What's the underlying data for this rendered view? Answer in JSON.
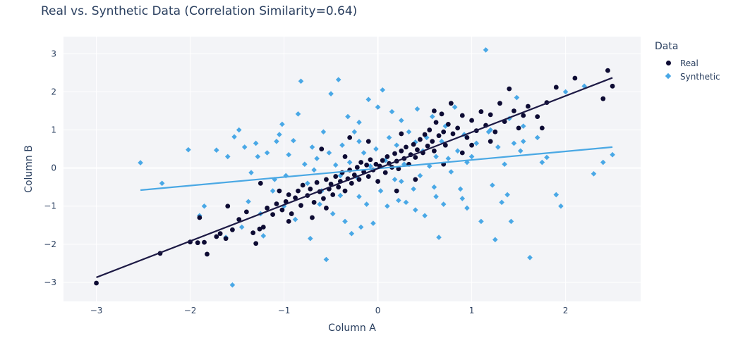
{
  "chart_data": {
    "type": "scatter",
    "title": "Real vs. Synthetic Data (Correlation Similarity=0.64)",
    "xlabel": "Column A",
    "ylabel": "Column B",
    "xlim": [
      -3.35,
      2.8
    ],
    "ylim": [
      -3.5,
      3.45
    ],
    "xticks": [
      -3,
      -2,
      -1,
      0,
      1,
      2
    ],
    "yticks": [
      -3,
      -2,
      -1,
      0,
      1,
      2,
      3
    ],
    "xtick_labels": [
      "−3",
      "−2",
      "−1",
      "0",
      "1",
      "2"
    ],
    "ytick_labels": [
      "−3",
      "−2",
      "−1",
      "0",
      "1",
      "2",
      "3"
    ],
    "grid": true,
    "plot_background": "#f3f4f7",
    "legend": {
      "title": "Data",
      "position": "top-right"
    },
    "series": [
      {
        "name": "Real",
        "marker": "circle",
        "color": "#0d0b33",
        "trendline": {
          "x": [
            -3.0,
            2.5
          ],
          "y": [
            -2.87,
            2.37
          ],
          "color": "#1d1a45"
        },
        "points": [
          [
            -3.0,
            -3.02
          ],
          [
            -2.32,
            -2.24
          ],
          [
            -1.92,
            -1.96
          ],
          [
            -1.82,
            -2.26
          ],
          [
            -2.0,
            -1.94
          ],
          [
            -1.85,
            -1.95
          ],
          [
            -1.72,
            -1.8
          ],
          [
            -1.68,
            -1.72
          ],
          [
            -1.62,
            -1.85
          ],
          [
            -1.55,
            -1.62
          ],
          [
            -1.48,
            -1.35
          ],
          [
            -1.4,
            -1.15
          ],
          [
            -1.33,
            -1.7
          ],
          [
            -1.3,
            -1.98
          ],
          [
            -1.26,
            -1.6
          ],
          [
            -1.22,
            -1.55
          ],
          [
            -1.18,
            -1.05
          ],
          [
            -1.12,
            -1.22
          ],
          [
            -1.08,
            -0.94
          ],
          [
            -1.02,
            -1.1
          ],
          [
            -0.98,
            -0.88
          ],
          [
            -0.95,
            -0.7
          ],
          [
            -0.92,
            -1.2
          ],
          [
            -0.88,
            -0.78
          ],
          [
            -0.85,
            -0.6
          ],
          [
            -0.82,
            -0.98
          ],
          [
            -0.8,
            -0.45
          ],
          [
            -0.75,
            -0.72
          ],
          [
            -0.72,
            -0.55
          ],
          [
            -0.68,
            -0.9
          ],
          [
            -0.65,
            -0.38
          ],
          [
            -0.62,
            -0.62
          ],
          [
            -0.58,
            -0.8
          ],
          [
            -0.55,
            -0.3
          ],
          [
            -0.52,
            -0.55
          ],
          [
            -0.5,
            -0.42
          ],
          [
            -0.48,
            -0.7
          ],
          [
            -0.45,
            -0.22
          ],
          [
            -0.42,
            -0.5
          ],
          [
            -0.4,
            -0.35
          ],
          [
            -0.38,
            -0.12
          ],
          [
            -0.35,
            -0.6
          ],
          [
            -0.32,
            -0.28
          ],
          [
            -0.3,
            -0.05
          ],
          [
            -0.28,
            -0.4
          ],
          [
            -0.25,
            -0.18
          ],
          [
            -0.22,
            0.02
          ],
          [
            -0.2,
            -0.3
          ],
          [
            -0.18,
            0.15
          ],
          [
            -0.15,
            -0.1
          ],
          [
            -0.12,
            0.08
          ],
          [
            -0.1,
            -0.22
          ],
          [
            -0.08,
            0.22
          ],
          [
            -0.05,
            -0.05
          ],
          [
            -0.02,
            0.1
          ],
          [
            0.0,
            -0.35
          ],
          [
            0.02,
            0.05
          ],
          [
            0.05,
            0.2
          ],
          [
            0.08,
            -0.12
          ],
          [
            0.1,
            0.3
          ],
          [
            0.12,
            0.12
          ],
          [
            0.15,
            0.02
          ],
          [
            0.18,
            0.38
          ],
          [
            0.2,
            0.18
          ],
          [
            0.22,
            -0.02
          ],
          [
            0.25,
            0.45
          ],
          [
            0.28,
            0.25
          ],
          [
            0.3,
            0.55
          ],
          [
            0.33,
            0.1
          ],
          [
            0.35,
            0.35
          ],
          [
            0.38,
            0.62
          ],
          [
            0.4,
            0.28
          ],
          [
            0.42,
            0.48
          ],
          [
            0.45,
            0.75
          ],
          [
            0.48,
            0.4
          ],
          [
            0.5,
            0.88
          ],
          [
            0.53,
            0.58
          ],
          [
            0.55,
            1.0
          ],
          [
            0.58,
            0.7
          ],
          [
            0.6,
            0.45
          ],
          [
            0.62,
            1.2
          ],
          [
            0.65,
            0.85
          ],
          [
            0.68,
            1.42
          ],
          [
            0.7,
            0.95
          ],
          [
            0.72,
            0.6
          ],
          [
            0.75,
            1.15
          ],
          [
            0.78,
            1.7
          ],
          [
            0.8,
            0.9
          ],
          [
            0.85,
            1.05
          ],
          [
            0.9,
            1.38
          ],
          [
            0.95,
            0.8
          ],
          [
            1.0,
            1.25
          ],
          [
            1.05,
            0.98
          ],
          [
            1.1,
            1.48
          ],
          [
            1.15,
            1.12
          ],
          [
            1.2,
            1.4
          ],
          [
            1.25,
            0.95
          ],
          [
            1.3,
            1.7
          ],
          [
            1.35,
            1.22
          ],
          [
            1.4,
            2.08
          ],
          [
            1.45,
            1.5
          ],
          [
            1.5,
            1.05
          ],
          [
            1.55,
            1.38
          ],
          [
            1.6,
            1.62
          ],
          [
            1.7,
            1.35
          ],
          [
            1.8,
            1.72
          ],
          [
            1.9,
            2.12
          ],
          [
            2.1,
            2.36
          ],
          [
            2.4,
            1.82
          ],
          [
            2.45,
            2.56
          ],
          [
            2.5,
            2.15
          ],
          [
            -1.25,
            -0.4
          ],
          [
            -1.05,
            -0.6
          ],
          [
            -0.6,
            0.5
          ],
          [
            -0.3,
            0.8
          ],
          [
            0.2,
            -0.6
          ],
          [
            0.4,
            -0.3
          ],
          [
            -0.7,
            -1.3
          ],
          [
            -0.95,
            -1.4
          ],
          [
            0.9,
            0.4
          ],
          [
            1.2,
            0.7
          ],
          [
            -1.6,
            -1.0
          ],
          [
            -1.9,
            -1.3
          ],
          [
            0.7,
            0.1
          ],
          [
            -0.1,
            0.7
          ],
          [
            0.6,
            1.5
          ],
          [
            1.75,
            1.05
          ],
          [
            -0.55,
            -1.05
          ],
          [
            0.25,
            0.9
          ],
          [
            -0.35,
            0.3
          ],
          [
            1.0,
            0.6
          ]
        ]
      },
      {
        "name": "Synthetic",
        "marker": "diamond",
        "color": "#49a8e6",
        "trendline": {
          "x": [
            -2.53,
            2.5
          ],
          "y": [
            -0.58,
            0.55
          ],
          "color": "#4aa8e4"
        },
        "points": [
          [
            -2.53,
            0.14
          ],
          [
            -2.3,
            -0.4
          ],
          [
            -2.02,
            0.48
          ],
          [
            -1.72,
            0.47
          ],
          [
            -1.9,
            -1.25
          ],
          [
            -1.62,
            -1.82
          ],
          [
            -1.53,
            0.82
          ],
          [
            -1.48,
            1.0
          ],
          [
            -1.42,
            0.55
          ],
          [
            -1.38,
            -0.88
          ],
          [
            -1.35,
            -0.12
          ],
          [
            -1.3,
            0.65
          ],
          [
            -1.28,
            0.3
          ],
          [
            -1.22,
            -1.78
          ],
          [
            -1.18,
            0.4
          ],
          [
            -1.12,
            -0.6
          ],
          [
            -1.08,
            0.7
          ],
          [
            -1.05,
            0.88
          ],
          [
            -1.02,
            1.15
          ],
          [
            -0.98,
            -0.2
          ],
          [
            -0.95,
            0.35
          ],
          [
            -0.9,
            0.72
          ],
          [
            -0.88,
            -1.35
          ],
          [
            -0.85,
            1.42
          ],
          [
            -0.82,
            2.28
          ],
          [
            -0.78,
            0.1
          ],
          [
            -0.75,
            -0.4
          ],
          [
            -0.72,
            -1.85
          ],
          [
            -0.7,
            0.55
          ],
          [
            -0.68,
            -0.05
          ],
          [
            -0.65,
            0.25
          ],
          [
            -0.62,
            -0.95
          ],
          [
            -0.58,
            0.95
          ],
          [
            -0.55,
            -2.4
          ],
          [
            -0.52,
            0.4
          ],
          [
            -0.5,
            1.95
          ],
          [
            -0.48,
            -1.2
          ],
          [
            -0.45,
            0.08
          ],
          [
            -0.42,
            2.32
          ],
          [
            -0.4,
            -0.72
          ],
          [
            -0.38,
            0.6
          ],
          [
            -0.35,
            -1.4
          ],
          [
            -0.32,
            1.35
          ],
          [
            -0.3,
            0.15
          ],
          [
            -0.28,
            -1.72
          ],
          [
            -0.25,
            0.95
          ],
          [
            -0.22,
            -0.25
          ],
          [
            -0.2,
            0.7
          ],
          [
            -0.18,
            -1.55
          ],
          [
            -0.15,
            0.4
          ],
          [
            -0.12,
            -0.95
          ],
          [
            -0.1,
            1.8
          ],
          [
            -0.08,
            0.05
          ],
          [
            -0.05,
            -1.45
          ],
          [
            -0.02,
            0.5
          ],
          [
            0.0,
            1.6
          ],
          [
            0.03,
            -0.6
          ],
          [
            0.05,
            2.05
          ],
          [
            0.08,
            0.2
          ],
          [
            0.1,
            -1.0
          ],
          [
            0.12,
            0.8
          ],
          [
            0.15,
            1.48
          ],
          [
            0.18,
            -0.3
          ],
          [
            0.2,
            0.6
          ],
          [
            0.22,
            -0.85
          ],
          [
            0.25,
            1.25
          ],
          [
            0.28,
            0.1
          ],
          [
            0.3,
            -0.9
          ],
          [
            0.33,
            0.95
          ],
          [
            0.35,
            0.35
          ],
          [
            0.38,
            -0.55
          ],
          [
            0.4,
            0.68
          ],
          [
            0.42,
            1.55
          ],
          [
            0.45,
            -0.2
          ],
          [
            0.48,
            0.45
          ],
          [
            0.5,
            -1.25
          ],
          [
            0.52,
            0.8
          ],
          [
            0.55,
            0.05
          ],
          [
            0.58,
            1.35
          ],
          [
            0.6,
            -0.5
          ],
          [
            0.62,
            0.3
          ],
          [
            0.65,
            -1.82
          ],
          [
            0.68,
            0.7
          ],
          [
            0.7,
            -0.95
          ],
          [
            0.72,
            1.1
          ],
          [
            0.75,
            0.25
          ],
          [
            0.78,
            -0.1
          ],
          [
            0.82,
            1.6
          ],
          [
            0.85,
            0.45
          ],
          [
            0.88,
            -0.55
          ],
          [
            0.92,
            0.88
          ],
          [
            0.95,
            -1.05
          ],
          [
            1.0,
            0.3
          ],
          [
            1.05,
            0.65
          ],
          [
            1.1,
            -1.4
          ],
          [
            1.15,
            3.1
          ],
          [
            1.18,
            0.95
          ],
          [
            1.22,
            -0.45
          ],
          [
            1.25,
            -1.88
          ],
          [
            1.28,
            0.55
          ],
          [
            1.32,
            -0.9
          ],
          [
            1.35,
            0.1
          ],
          [
            1.4,
            1.3
          ],
          [
            1.42,
            -1.4
          ],
          [
            1.45,
            0.65
          ],
          [
            1.48,
            1.85
          ],
          [
            1.52,
            0.45
          ],
          [
            1.55,
            1.1
          ],
          [
            1.62,
            -2.35
          ],
          [
            1.7,
            0.8
          ],
          [
            1.8,
            0.28
          ],
          [
            1.9,
            -0.7
          ],
          [
            1.95,
            -1.0
          ],
          [
            2.0,
            2.0
          ],
          [
            2.2,
            2.15
          ],
          [
            2.3,
            -0.15
          ],
          [
            2.4,
            0.15
          ],
          [
            2.5,
            0.35
          ],
          [
            -1.6,
            0.3
          ],
          [
            -1.1,
            -0.3
          ],
          [
            -0.6,
            -0.6
          ],
          [
            0.9,
            -0.8
          ],
          [
            1.2,
            1.0
          ],
          [
            -1.45,
            -1.55
          ],
          [
            0.4,
            -1.1
          ],
          [
            -0.2,
            1.2
          ],
          [
            -1.0,
            -1.0
          ],
          [
            1.75,
            0.15
          ],
          [
            -0.4,
            -0.2
          ],
          [
            0.25,
            -0.35
          ],
          [
            -1.25,
            -1.2
          ],
          [
            0.62,
            -0.75
          ],
          [
            1.38,
            -0.7
          ],
          [
            -1.55,
            -3.07
          ],
          [
            -1.85,
            -1.0
          ],
          [
            1.55,
            0.7
          ],
          [
            -0.2,
            -0.75
          ],
          [
            0.95,
            0.15
          ]
        ]
      }
    ]
  }
}
